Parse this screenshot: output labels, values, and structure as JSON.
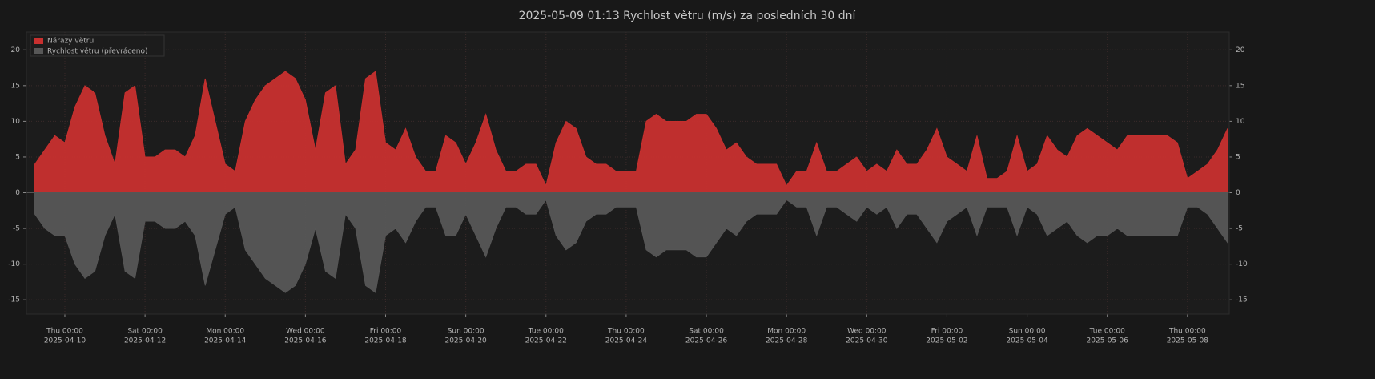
{
  "chart_data": {
    "type": "area",
    "title": "2025-05-09  01:13  Rychlost větru (m/s) za posledních 30 dní",
    "x": [
      "2025-04-09 06:00",
      "2025-04-09 12:00",
      "2025-04-09 18:00",
      "2025-04-10 00:00",
      "2025-04-10 06:00",
      "2025-04-10 12:00",
      "2025-04-10 18:00",
      "2025-04-11 00:00",
      "2025-04-11 06:00",
      "2025-04-11 12:00",
      "2025-04-11 18:00",
      "2025-04-12 00:00",
      "2025-04-12 06:00",
      "2025-04-12 12:00",
      "2025-04-12 18:00",
      "2025-04-13 00:00",
      "2025-04-13 06:00",
      "2025-04-13 12:00",
      "2025-04-13 18:00",
      "2025-04-14 00:00",
      "2025-04-14 06:00",
      "2025-04-14 12:00",
      "2025-04-14 18:00",
      "2025-04-15 00:00",
      "2025-04-15 06:00",
      "2025-04-15 12:00",
      "2025-04-15 18:00",
      "2025-04-16 00:00",
      "2025-04-16 06:00",
      "2025-04-16 12:00",
      "2025-04-16 18:00",
      "2025-04-17 00:00",
      "2025-04-17 06:00",
      "2025-04-17 12:00",
      "2025-04-17 18:00",
      "2025-04-18 00:00",
      "2025-04-18 06:00",
      "2025-04-18 12:00",
      "2025-04-18 18:00",
      "2025-04-19 00:00",
      "2025-04-19 06:00",
      "2025-04-19 12:00",
      "2025-04-19 18:00",
      "2025-04-20 00:00",
      "2025-04-20 06:00",
      "2025-04-20 12:00",
      "2025-04-20 18:00",
      "2025-04-21 00:00",
      "2025-04-21 06:00",
      "2025-04-21 12:00",
      "2025-04-21 18:00",
      "2025-04-22 00:00",
      "2025-04-22 06:00",
      "2025-04-22 12:00",
      "2025-04-22 18:00",
      "2025-04-23 00:00",
      "2025-04-23 06:00",
      "2025-04-23 12:00",
      "2025-04-23 18:00",
      "2025-04-24 00:00",
      "2025-04-24 06:00",
      "2025-04-24 12:00",
      "2025-04-24 18:00",
      "2025-04-25 00:00",
      "2025-04-25 06:00",
      "2025-04-25 12:00",
      "2025-04-25 18:00",
      "2025-04-26 00:00",
      "2025-04-26 06:00",
      "2025-04-26 12:00",
      "2025-04-26 18:00",
      "2025-04-27 00:00",
      "2025-04-27 06:00",
      "2025-04-27 12:00",
      "2025-04-27 18:00",
      "2025-04-28 00:00",
      "2025-04-28 06:00",
      "2025-04-28 12:00",
      "2025-04-28 18:00",
      "2025-04-29 00:00",
      "2025-04-29 06:00",
      "2025-04-29 12:00",
      "2025-04-29 18:00",
      "2025-04-30 00:00",
      "2025-04-30 06:00",
      "2025-04-30 12:00",
      "2025-04-30 18:00",
      "2025-05-01 00:00",
      "2025-05-01 06:00",
      "2025-05-01 12:00",
      "2025-05-01 18:00",
      "2025-05-02 00:00",
      "2025-05-02 06:00",
      "2025-05-02 12:00",
      "2025-05-02 18:00",
      "2025-05-03 00:00",
      "2025-05-03 06:00",
      "2025-05-03 12:00",
      "2025-05-03 18:00",
      "2025-05-04 00:00",
      "2025-05-04 06:00",
      "2025-05-04 12:00",
      "2025-05-04 18:00",
      "2025-05-05 00:00",
      "2025-05-05 06:00",
      "2025-05-05 12:00",
      "2025-05-05 18:00",
      "2025-05-06 00:00",
      "2025-05-06 06:00",
      "2025-05-06 12:00",
      "2025-05-06 18:00",
      "2025-05-07 00:00",
      "2025-05-07 06:00",
      "2025-05-07 12:00",
      "2025-05-07 18:00",
      "2025-05-08 00:00",
      "2025-05-08 06:00",
      "2025-05-08 12:00",
      "2025-05-08 18:00",
      "2025-05-09 00:00"
    ],
    "series": [
      {
        "name": "Nárazy větru",
        "color": "#c8302f",
        "values": [
          4,
          6,
          8,
          7,
          12,
          15,
          14,
          8,
          4,
          14,
          15,
          5,
          5,
          6,
          6,
          5,
          8,
          16,
          10,
          4,
          3,
          10,
          13,
          15,
          16,
          17,
          16,
          13,
          6,
          14,
          15,
          4,
          6,
          16,
          17,
          7,
          6,
          9,
          5,
          3,
          3,
          8,
          7,
          4,
          7,
          11,
          6,
          3,
          3,
          4,
          4,
          1,
          7,
          10,
          9,
          5,
          4,
          4,
          3,
          3,
          3,
          10,
          11,
          10,
          10,
          10,
          11,
          11,
          9,
          6,
          7,
          5,
          4,
          4,
          4,
          1,
          3,
          3,
          7,
          3,
          3,
          4,
          5,
          3,
          4,
          3,
          6,
          4,
          4,
          6,
          9,
          5,
          4,
          3,
          8,
          2,
          2,
          3,
          8,
          3,
          4,
          8,
          6,
          5,
          8,
          9,
          8,
          7,
          6,
          8,
          8,
          8,
          8,
          8,
          7,
          2,
          3,
          4,
          6,
          9
        ]
      },
      {
        "name": "Rychlost větru (převráceno)",
        "color": "#575757",
        "values": [
          -3,
          -5,
          -6,
          -6,
          -10,
          -12,
          -11,
          -6,
          -3,
          -11,
          -12,
          -4,
          -4,
          -5,
          -5,
          -4,
          -6,
          -13,
          -8,
          -3,
          -2,
          -8,
          -10,
          -12,
          -13,
          -14,
          -13,
          -10,
          -5,
          -11,
          -12,
          -3,
          -5,
          -13,
          -14,
          -6,
          -5,
          -7,
          -4,
          -2,
          -2,
          -6,
          -6,
          -3,
          -6,
          -9,
          -5,
          -2,
          -2,
          -3,
          -3,
          -1,
          -6,
          -8,
          -7,
          -4,
          -3,
          -3,
          -2,
          -2,
          -2,
          -8,
          -9,
          -8,
          -8,
          -8,
          -9,
          -9,
          -7,
          -5,
          -6,
          -4,
          -3,
          -3,
          -3,
          -1,
          -2,
          -2,
          -6,
          -2,
          -2,
          -3,
          -4,
          -2,
          -3,
          -2,
          -5,
          -3,
          -3,
          -5,
          -7,
          -4,
          -3,
          -2,
          -6,
          -2,
          -2,
          -2,
          -6,
          -2,
          -3,
          -6,
          -5,
          -4,
          -6,
          -7,
          -6,
          -6,
          -5,
          -6,
          -6,
          -6,
          -6,
          -6,
          -6,
          -2,
          -2,
          -3,
          -5,
          -7
        ]
      }
    ],
    "xlim": [
      "2025-04-09 01:00",
      "2025-05-09 01:00"
    ],
    "xticks": [
      {
        "value": "2025-04-10 00:00",
        "label": [
          "Thu 00:00",
          "2025-04-10"
        ]
      },
      {
        "value": "2025-04-12 00:00",
        "label": [
          "Sat 00:00",
          "2025-04-12"
        ]
      },
      {
        "value": "2025-04-14 00:00",
        "label": [
          "Mon 00:00",
          "2025-04-14"
        ]
      },
      {
        "value": "2025-04-16 00:00",
        "label": [
          "Wed 00:00",
          "2025-04-16"
        ]
      },
      {
        "value": "2025-04-18 00:00",
        "label": [
          "Fri 00:00",
          "2025-04-18"
        ]
      },
      {
        "value": "2025-04-20 00:00",
        "label": [
          "Sun 00:00",
          "2025-04-20"
        ]
      },
      {
        "value": "2025-04-22 00:00",
        "label": [
          "Tue 00:00",
          "2025-04-22"
        ]
      },
      {
        "value": "2025-04-24 00:00",
        "label": [
          "Thu 00:00",
          "2025-04-24"
        ]
      },
      {
        "value": "2025-04-26 00:00",
        "label": [
          "Sat 00:00",
          "2025-04-26"
        ]
      },
      {
        "value": "2025-04-28 00:00",
        "label": [
          "Mon 00:00",
          "2025-04-28"
        ]
      },
      {
        "value": "2025-04-30 00:00",
        "label": [
          "Wed 00:00",
          "2025-04-30"
        ]
      },
      {
        "value": "2025-05-02 00:00",
        "label": [
          "Fri 00:00",
          "2025-05-02"
        ]
      },
      {
        "value": "2025-05-04 00:00",
        "label": [
          "Sun 00:00",
          "2025-05-04"
        ]
      },
      {
        "value": "2025-05-06 00:00",
        "label": [
          "Tue 00:00",
          "2025-05-06"
        ]
      },
      {
        "value": "2025-05-08 00:00",
        "label": [
          "Thu 00:00",
          "2025-05-08"
        ]
      }
    ],
    "ylim": [
      -17,
      22.5
    ],
    "yticks": [
      -15,
      -10,
      -5,
      0,
      5,
      10,
      15,
      20
    ],
    "grid": true,
    "legend": "top-left"
  }
}
